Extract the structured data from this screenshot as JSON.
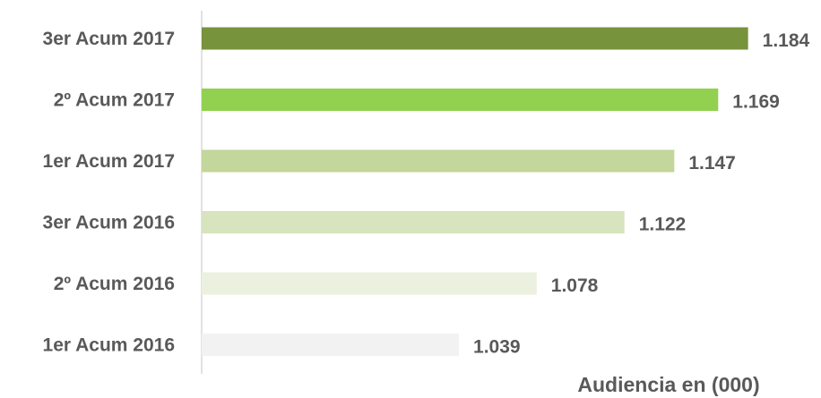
{
  "chart_data": {
    "type": "bar",
    "orientation": "horizontal",
    "categories": [
      "3er Acum 2017",
      "2º Acum 2017",
      "1er Acum 2017",
      "3er Acum 2016",
      "2º Acum 2016",
      "1er Acum 2016"
    ],
    "values": [
      1184,
      1169,
      1147,
      1122,
      1078,
      1039
    ],
    "value_labels": [
      "1.184",
      "1.169",
      "1.147",
      "1.122",
      "1.078",
      "1.039"
    ],
    "colors": [
      "#77933c",
      "#92d050",
      "#c3d69b",
      "#d7e4bd",
      "#ebf1de",
      "#f2f2f2"
    ],
    "xlabel": "Audiencia en (000)",
    "ylabel": "",
    "title": "",
    "xlim": [
      910,
      1190
    ],
    "grid": false,
    "legend": "none"
  }
}
